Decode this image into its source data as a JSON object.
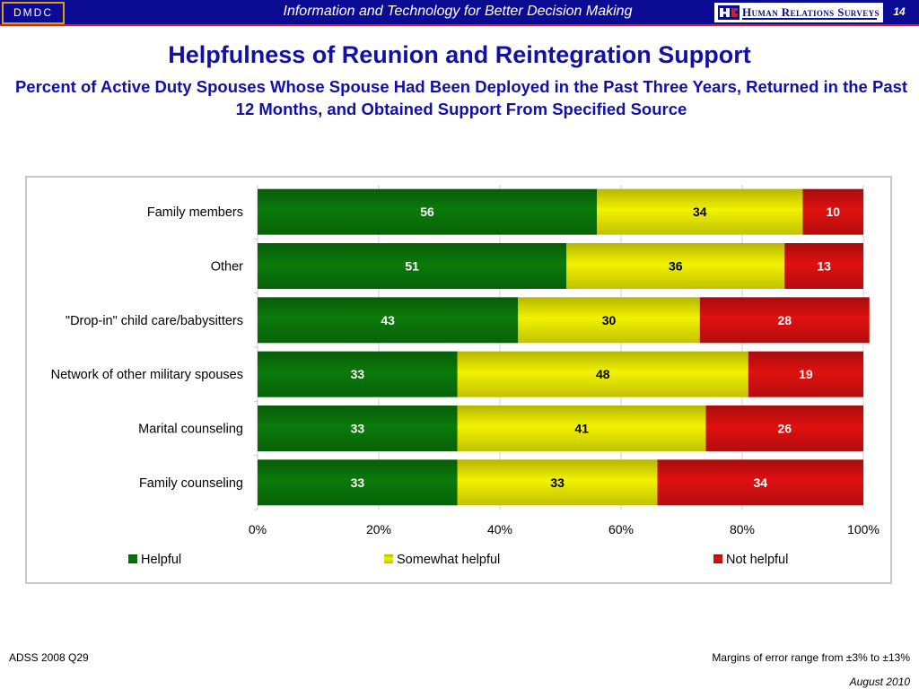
{
  "header": {
    "logo_text": "DMDC",
    "title": "Information and Technology for Better Decision Making",
    "partner_logo_text": "Human Relations Surveys",
    "page_number": "14"
  },
  "slide": {
    "title": "Helpfulness of Reunion and Reintegration Support",
    "subtitle": "Percent of Active Duty Spouses Whose Spouse Had Been Deployed in the Past Three Years, Returned in the Past 12 Months, and Obtained Support From Specified Source"
  },
  "chart_data": {
    "type": "bar",
    "orientation": "horizontal",
    "stacked": "percent",
    "categories": [
      "Family members",
      "Other",
      "\"Drop-in\" child care/babysitters",
      "Network of other military spouses",
      "Marital counseling",
      "Family counseling"
    ],
    "series": [
      {
        "name": "Helpful",
        "values": [
          56,
          51,
          43,
          33,
          33,
          33
        ],
        "color": "#0a7a0a"
      },
      {
        "name": "Somewhat helpful",
        "values": [
          34,
          36,
          30,
          48,
          41,
          33
        ],
        "color": "#f2f200"
      },
      {
        "name": "Not helpful",
        "values": [
          10,
          13,
          28,
          19,
          26,
          34
        ],
        "color": "#e01010"
      }
    ],
    "xlim": [
      0,
      100
    ],
    "xticks": [
      "0%",
      "20%",
      "40%",
      "60%",
      "80%",
      "100%"
    ],
    "grid": true,
    "legend_position": "bottom"
  },
  "footer": {
    "source": "ADSS 2008 Q29",
    "margin_note": "Margins of error range from ±3% to ±13%",
    "date": "August 2010"
  }
}
